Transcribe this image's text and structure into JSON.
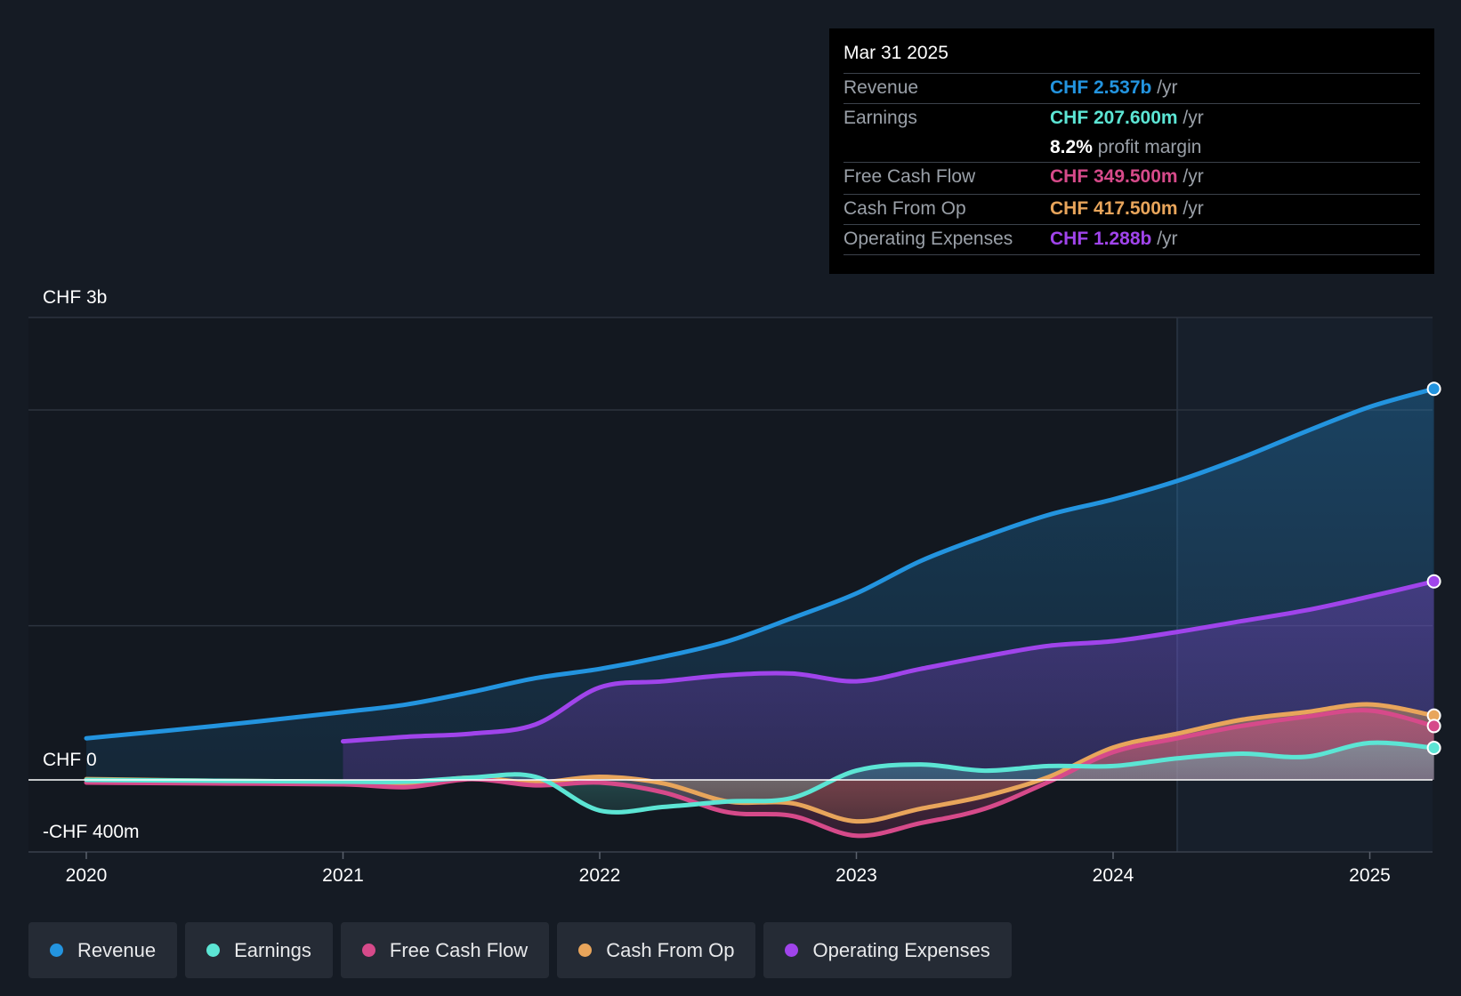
{
  "chart_data": {
    "type": "area",
    "title": "",
    "x_ticks": [
      "2020",
      "2021",
      "2022",
      "2023",
      "2024",
      "2025"
    ],
    "y_ticks": [
      {
        "value": 3000,
        "label": "CHF 3b"
      },
      {
        "value": 0,
        "label": "CHF 0"
      },
      {
        "value": -400,
        "label": "-CHF 400m"
      }
    ],
    "ylim": [
      -400,
      3000
    ],
    "xlim": [
      2019.77,
      2025.25
    ],
    "units": "CHF m",
    "series": [
      {
        "name": "Revenue",
        "color": "#2394df",
        "points": [
          [
            2020,
            270
          ],
          [
            2020.5,
            350
          ],
          [
            2021,
            440
          ],
          [
            2021.25,
            490
          ],
          [
            2021.5,
            570
          ],
          [
            2021.75,
            660
          ],
          [
            2022,
            720
          ],
          [
            2022.25,
            800
          ],
          [
            2022.5,
            900
          ],
          [
            2022.75,
            1050
          ],
          [
            2023,
            1210
          ],
          [
            2023.25,
            1420
          ],
          [
            2023.5,
            1580
          ],
          [
            2023.75,
            1720
          ],
          [
            2024,
            1820
          ],
          [
            2024.25,
            1940
          ],
          [
            2024.5,
            2090
          ],
          [
            2024.75,
            2260
          ],
          [
            2025,
            2420
          ],
          [
            2025.25,
            2537
          ]
        ]
      },
      {
        "name": "Operating Expenses",
        "color": "#a044eb",
        "points": [
          [
            2021,
            250
          ],
          [
            2021.25,
            280
          ],
          [
            2021.5,
            300
          ],
          [
            2021.75,
            360
          ],
          [
            2022,
            600
          ],
          [
            2022.25,
            640
          ],
          [
            2022.5,
            680
          ],
          [
            2022.75,
            690
          ],
          [
            2023,
            640
          ],
          [
            2023.25,
            720
          ],
          [
            2023.5,
            800
          ],
          [
            2023.75,
            870
          ],
          [
            2024,
            900
          ],
          [
            2024.25,
            960
          ],
          [
            2024.5,
            1030
          ],
          [
            2024.75,
            1100
          ],
          [
            2025,
            1190
          ],
          [
            2025.25,
            1288
          ]
        ]
      },
      {
        "name": "Cash From Op",
        "color": "#e8a55b",
        "points": [
          [
            2020,
            5
          ],
          [
            2020.5,
            -5
          ],
          [
            2021,
            -10
          ],
          [
            2021.25,
            -20
          ],
          [
            2021.5,
            15
          ],
          [
            2021.75,
            -15
          ],
          [
            2022,
            20
          ],
          [
            2022.25,
            -20
          ],
          [
            2022.5,
            -120
          ],
          [
            2022.75,
            -130
          ],
          [
            2023,
            -230
          ],
          [
            2023.25,
            -160
          ],
          [
            2023.5,
            -90
          ],
          [
            2023.75,
            20
          ],
          [
            2024,
            210
          ],
          [
            2024.25,
            300
          ],
          [
            2024.5,
            390
          ],
          [
            2024.75,
            440
          ],
          [
            2025,
            490
          ],
          [
            2025.25,
            417.5
          ]
        ]
      },
      {
        "name": "Free Cash Flow",
        "color": "#d64a8a",
        "points": [
          [
            2020,
            -15
          ],
          [
            2020.5,
            -20
          ],
          [
            2021,
            -25
          ],
          [
            2021.25,
            -40
          ],
          [
            2021.5,
            5
          ],
          [
            2021.75,
            -30
          ],
          [
            2022,
            -15
          ],
          [
            2022.25,
            -70
          ],
          [
            2022.5,
            -180
          ],
          [
            2022.75,
            -200
          ],
          [
            2023,
            -310
          ],
          [
            2023.25,
            -240
          ],
          [
            2023.5,
            -160
          ],
          [
            2023.75,
            -10
          ],
          [
            2024,
            180
          ],
          [
            2024.25,
            270
          ],
          [
            2024.5,
            350
          ],
          [
            2024.75,
            410
          ],
          [
            2025,
            450
          ],
          [
            2025.25,
            349.5
          ]
        ]
      },
      {
        "name": "Earnings",
        "color": "#5ce5d4",
        "points": [
          [
            2020,
            0
          ],
          [
            2020.5,
            -5
          ],
          [
            2021,
            -10
          ],
          [
            2021.25,
            -10
          ],
          [
            2021.5,
            15
          ],
          [
            2021.75,
            20
          ],
          [
            2022,
            -170
          ],
          [
            2022.25,
            -150
          ],
          [
            2022.5,
            -120
          ],
          [
            2022.75,
            -100
          ],
          [
            2023,
            60
          ],
          [
            2023.25,
            100
          ],
          [
            2023.5,
            60
          ],
          [
            2023.75,
            90
          ],
          [
            2024,
            90
          ],
          [
            2024.25,
            140
          ],
          [
            2024.5,
            170
          ],
          [
            2024.75,
            150
          ],
          [
            2025,
            240
          ],
          [
            2025.25,
            207.6
          ]
        ]
      }
    ]
  },
  "tooltip": {
    "date": "Mar 31 2025",
    "rows": [
      {
        "label": "Revenue",
        "value": "CHF 2.537b",
        "unit": " /yr",
        "color": "#2394df"
      },
      {
        "label": "Earnings",
        "value": "CHF 207.600m",
        "unit": " /yr",
        "color": "#5ce5d4"
      },
      {
        "label": "",
        "value": "8.2%",
        "unit": " profit margin",
        "color": "#ffffff"
      },
      {
        "label": "Free Cash Flow",
        "value": "CHF 349.500m",
        "unit": " /yr",
        "color": "#d64a8a"
      },
      {
        "label": "Cash From Op",
        "value": "CHF 417.500m",
        "unit": " /yr",
        "color": "#e8a55b"
      },
      {
        "label": "Operating Expenses",
        "value": "CHF 1.288b",
        "unit": " /yr",
        "color": "#a044eb"
      }
    ]
  },
  "legend": [
    {
      "label": "Revenue",
      "color": "#2394df"
    },
    {
      "label": "Earnings",
      "color": "#5ce5d4"
    },
    {
      "label": "Free Cash Flow",
      "color": "#d64a8a"
    },
    {
      "label": "Cash From Op",
      "color": "#e8a55b"
    },
    {
      "label": "Operating Expenses",
      "color": "#a044eb"
    }
  ]
}
